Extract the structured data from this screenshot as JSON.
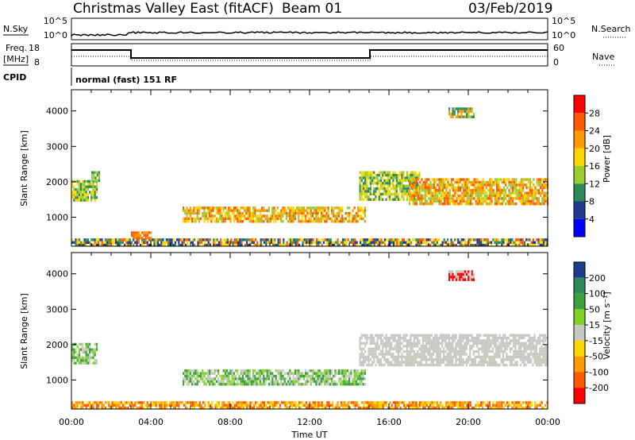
{
  "header": {
    "station": "Christmas Valley East (fitACF)",
    "beam": "Beam 01",
    "date": "03/Feb/2019"
  },
  "top_panels": {
    "nsky_label": "N.Sky",
    "nsearch_label": "N.Search",
    "noise_ticks_left": [
      "10^5",
      "10^0"
    ],
    "noise_ticks_right": [
      "10^5",
      "10^0"
    ],
    "freq_label_1": "Freq.",
    "freq_label_2": "[MHz]",
    "freq_ticks": [
      "18",
      "8"
    ],
    "nave_label": "Nave",
    "nave_ticks": [
      "60",
      "0"
    ],
    "cpid_label": "CPID",
    "cpid_text": "normal (fast) 151 RF"
  },
  "axes": {
    "ylabel": "Slant Range [km]",
    "yticks": [
      "4000",
      "3000",
      "2000",
      "1000"
    ],
    "xticks": [
      "00:00",
      "04:00",
      "08:00",
      "12:00",
      "16:00",
      "20:00",
      "00:00"
    ],
    "xlabel": "Time UT"
  },
  "colorbars": {
    "power": {
      "label": "Power [dB]",
      "ticks": [
        "28",
        "24",
        "20",
        "16",
        "12",
        "8",
        "4"
      ],
      "colors": [
        "#ff0000",
        "#ff5a00",
        "#ff9b00",
        "#ffd700",
        "#9acd32",
        "#2e8b57",
        "#1e3c8c",
        "#0000ff"
      ]
    },
    "velocity": {
      "label": "Velocity [m s⁻¹]",
      "ticks": [
        "200",
        "100",
        "50",
        "15",
        "-15",
        "-50",
        "-100",
        "-200"
      ],
      "colors": [
        "#1e3c8c",
        "#2e8b57",
        "#3ca03c",
        "#7fd32c",
        "#c8c8c0",
        "#ffd700",
        "#ff9b00",
        "#ff5a00",
        "#ff0000"
      ]
    }
  },
  "chart_data": [
    {
      "type": "heatmap",
      "name": "power",
      "xlabel": "Time UT",
      "ylabel": "Slant Range [km]",
      "xlim": [
        0,
        24
      ],
      "ylim": [
        180,
        4600
      ],
      "colorbar_label": "Power [dB]",
      "regions": [
        {
          "t0": 0.0,
          "t1": 1.3,
          "r0": 1500,
          "r1": 2050,
          "values": [
            12,
            8,
            16
          ]
        },
        {
          "t0": 1.0,
          "t1": 1.4,
          "r0": 2050,
          "r1": 2300,
          "values": [
            8,
            12
          ]
        },
        {
          "t0": 5.6,
          "t1": 14.8,
          "r0": 900,
          "r1": 1300,
          "values": [
            12,
            16,
            20,
            24
          ]
        },
        {
          "t0": 14.5,
          "t1": 17.5,
          "r0": 1500,
          "r1": 2300,
          "values": [
            8,
            12,
            16
          ]
        },
        {
          "t0": 17.0,
          "t1": 24.0,
          "r0": 1400,
          "r1": 2100,
          "values": [
            12,
            16,
            20,
            24
          ]
        },
        {
          "t0": 0.0,
          "t1": 24.0,
          "r0": 200,
          "r1": 400,
          "values": [
            4,
            8,
            16,
            24
          ]
        },
        {
          "t0": 3.0,
          "t1": 4.0,
          "r0": 380,
          "r1": 600,
          "values": [
            20,
            24
          ]
        },
        {
          "t0": 19.0,
          "t1": 20.3,
          "r0": 3800,
          "r1": 4100,
          "values": [
            8,
            12,
            20
          ]
        }
      ]
    },
    {
      "type": "heatmap",
      "name": "velocity",
      "xlabel": "Time UT",
      "ylabel": "Slant Range [km]",
      "xlim": [
        0,
        24
      ],
      "ylim": [
        180,
        4600
      ],
      "colorbar_label": "Velocity [m s⁻¹]",
      "regions": [
        {
          "t0": 0.0,
          "t1": 1.3,
          "r0": 1500,
          "r1": 2050,
          "values": [
            0,
            15,
            50
          ]
        },
        {
          "t0": 5.6,
          "t1": 14.8,
          "r0": 900,
          "r1": 1300,
          "values": [
            0,
            15,
            50
          ]
        },
        {
          "t0": 14.5,
          "t1": 24.0,
          "r0": 1400,
          "r1": 2300,
          "values": [
            0
          ]
        },
        {
          "t0": 0.0,
          "t1": 24.0,
          "r0": 200,
          "r1": 400,
          "values": [
            -50,
            -15,
            -100
          ]
        },
        {
          "t0": 19.0,
          "t1": 20.3,
          "r0": 3800,
          "r1": 4100,
          "values": [
            -200,
            0
          ]
        }
      ]
    }
  ]
}
